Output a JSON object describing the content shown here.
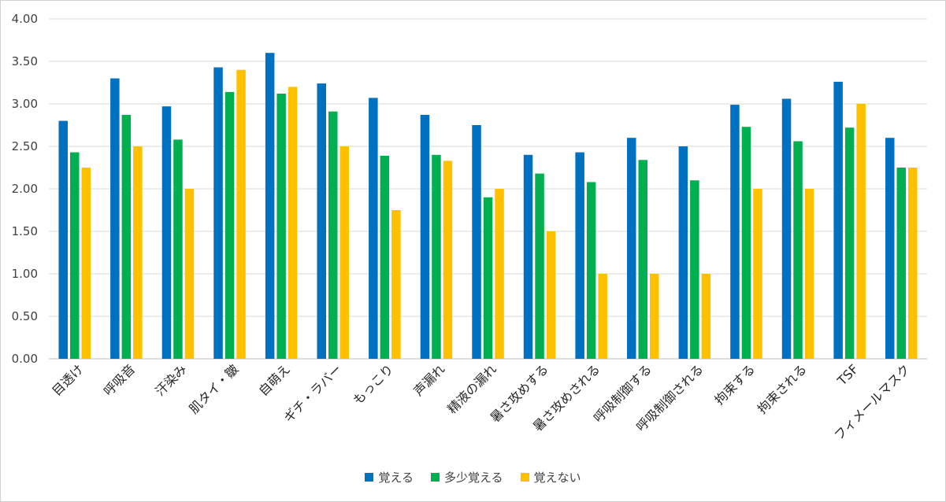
{
  "chart_data": {
    "type": "bar",
    "categories": [
      "目透け",
      "呼吸音",
      "汗染み",
      "肌タイ・皺",
      "自萌え",
      "ギチ・ラバー",
      "もっこり",
      "声漏れ",
      "精液の漏れ",
      "暑さ攻めする",
      "暑さ攻めされる",
      "呼吸制御する",
      "呼吸制御される",
      "拘束する",
      "拘束される",
      "TSF",
      "フィメールマスク"
    ],
    "series": [
      {
        "name": "覚える",
        "color": "#0070c0",
        "values": [
          2.8,
          3.3,
          2.97,
          3.43,
          3.6,
          3.24,
          3.07,
          2.87,
          2.75,
          2.4,
          2.43,
          2.6,
          2.5,
          2.99,
          3.06,
          3.26,
          2.6
        ]
      },
      {
        "name": "多少覚える",
        "color": "#00b050",
        "values": [
          2.43,
          2.87,
          2.58,
          3.14,
          3.12,
          2.91,
          2.39,
          2.4,
          1.9,
          2.18,
          2.08,
          2.34,
          2.1,
          2.73,
          2.56,
          2.72,
          2.25
        ]
      },
      {
        "name": "覚えない",
        "color": "#ffc000",
        "values": [
          2.25,
          2.5,
          2.0,
          3.4,
          3.2,
          2.5,
          1.75,
          2.33,
          2.0,
          1.5,
          1.0,
          1.0,
          1.0,
          2.0,
          2.0,
          3.0,
          2.25
        ]
      }
    ],
    "yticks": [
      "0.00",
      "0.50",
      "1.00",
      "1.50",
      "2.00",
      "2.50",
      "3.00",
      "3.50",
      "4.00"
    ],
    "ylim": [
      0,
      4
    ],
    "grid": true,
    "legend_position": "bottom"
  }
}
